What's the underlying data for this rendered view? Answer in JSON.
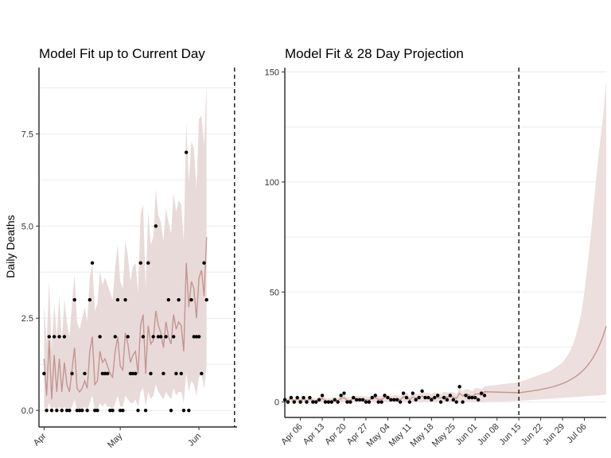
{
  "chart_data": [
    {
      "type": "line",
      "title": "Model Fit up to Current Day",
      "ylabel": "Daily Deaths",
      "xlabel": "",
      "ylim": [
        -0.45,
        9.3
      ],
      "xlim": [
        "2020-03-30",
        "2020-06-16"
      ],
      "current_day": "2020-06-15",
      "x_ticks": [
        {
          "date": "2020-04-01",
          "label": "Apr"
        },
        {
          "date": "2020-05-01",
          "label": "May"
        },
        {
          "date": "2020-06-01",
          "label": "Jun"
        }
      ],
      "y_ticks": [
        {
          "value": 0,
          "label": "0.0"
        },
        {
          "value": 2.5,
          "label": "2.5"
        },
        {
          "value": 5,
          "label": "5.0"
        },
        {
          "value": 7.5,
          "label": "7.5"
        }
      ],
      "grid": true,
      "start_date": "2020-04-01",
      "observed": [
        1,
        0,
        2,
        0,
        2,
        0,
        2,
        0,
        2,
        0,
        0,
        1,
        3,
        0,
        0,
        0,
        1,
        0,
        3,
        4,
        0,
        0,
        2,
        1,
        1,
        1,
        0,
        0,
        2,
        3,
        0,
        0,
        3,
        2,
        1,
        1,
        1,
        0,
        4,
        2,
        0,
        4,
        1,
        2,
        5,
        2,
        2,
        1,
        2,
        3,
        0,
        2,
        1,
        3,
        1,
        0,
        7,
        0,
        3,
        2,
        2,
        2,
        1,
        4,
        3
      ],
      "fit_median": [
        1.4,
        0.4,
        1.9,
        0.3,
        1.5,
        0.5,
        1.4,
        0.5,
        1.3,
        0.7,
        0.5,
        1.1,
        1.7,
        0.6,
        0.5,
        0.6,
        0.8,
        0.6,
        1.6,
        2.0,
        0.7,
        0.8,
        1.6,
        1.3,
        1.4,
        1.2,
        1.0,
        0.9,
        1.6,
        2.0,
        1.2,
        1.1,
        2.1,
        1.8,
        1.3,
        1.5,
        1.6,
        1.0,
        2.3,
        2.6,
        1.0,
        2.3,
        1.8,
        1.9,
        2.7,
        2.3,
        2.1,
        1.7,
        2.4,
        2.0,
        1.8,
        2.6,
        2.2,
        2.4,
        2.3,
        1.6,
        4.0,
        2.8,
        3.5,
        3.3,
        2.5,
        3.6,
        3.8,
        3.1,
        4.7
      ],
      "fit_upper": [
        2.9,
        1.8,
        3.5,
        1.7,
        2.9,
        2.0,
        3.1,
        1.9,
        3.0,
        2.4,
        2.0,
        2.9,
        3.7,
        2.4,
        2.2,
        2.5,
        2.8,
        2.4,
        3.6,
        4.0,
        2.7,
        2.9,
        3.8,
        3.4,
        3.6,
        3.4,
        3.2,
        3.0,
        3.9,
        4.5,
        3.5,
        3.3,
        4.6,
        4.2,
        3.5,
        3.9,
        4.0,
        3.2,
        5.3,
        5.6,
        3.3,
        5.4,
        4.5,
        4.7,
        6.0,
        5.3,
        5.1,
        4.6,
        5.5,
        5.1,
        4.8,
        5.9,
        5.4,
        5.7,
        5.6,
        4.6,
        7.8,
        6.2,
        7.3,
        7.1,
        6.0,
        7.9,
        8.0,
        7.2,
        8.9
      ],
      "fit_lower": [
        0.1,
        0.0,
        0.2,
        0.0,
        0.1,
        0.0,
        0.1,
        0.0,
        0.1,
        0.0,
        0.0,
        0.1,
        0.3,
        0.0,
        0.0,
        0.0,
        0.1,
        0.0,
        0.2,
        0.4,
        0.0,
        0.0,
        0.2,
        0.1,
        0.2,
        0.1,
        0.1,
        0.0,
        0.2,
        0.4,
        0.1,
        0.1,
        0.4,
        0.3,
        0.2,
        0.2,
        0.3,
        0.1,
        0.5,
        0.6,
        0.1,
        0.5,
        0.3,
        0.4,
        0.7,
        0.5,
        0.4,
        0.3,
        0.5,
        0.4,
        0.3,
        0.6,
        0.4,
        0.5,
        0.5,
        0.2,
        1.0,
        0.5,
        0.8,
        0.7,
        0.4,
        0.9,
        1.0,
        0.6,
        1.2
      ],
      "colors": {
        "ribbon": "#e9dada",
        "line": "#c2968f",
        "points": "#000000",
        "axis": "#000000",
        "grid": "#ebebeb"
      }
    },
    {
      "type": "line",
      "title": "Model Fit & 28 Day Projection",
      "ylabel": "",
      "xlabel": "",
      "ylim": [
        -7,
        152
      ],
      "xlim": [
        "2020-04-01",
        "2020-07-13"
      ],
      "current_day": "2020-06-15",
      "x_ticks": [
        {
          "date": "2020-04-06",
          "label": "Apr 06"
        },
        {
          "date": "2020-04-13",
          "label": "Apr 13"
        },
        {
          "date": "2020-04-20",
          "label": "Apr 20"
        },
        {
          "date": "2020-04-27",
          "label": "Apr 27"
        },
        {
          "date": "2020-05-04",
          "label": "May 04"
        },
        {
          "date": "2020-05-11",
          "label": "May 11"
        },
        {
          "date": "2020-05-18",
          "label": "May 18"
        },
        {
          "date": "2020-05-25",
          "label": "May 25"
        },
        {
          "date": "2020-06-01",
          "label": "Jun 01"
        },
        {
          "date": "2020-06-08",
          "label": "Jun 08"
        },
        {
          "date": "2020-06-15",
          "label": "Jun 15"
        },
        {
          "date": "2020-06-22",
          "label": "Jun 22"
        },
        {
          "date": "2020-06-29",
          "label": "Jun 29"
        },
        {
          "date": "2020-07-06",
          "label": "Jul 06"
        }
      ],
      "y_ticks": [
        {
          "value": 0,
          "label": "0"
        },
        {
          "value": 50,
          "label": "50"
        },
        {
          "value": 100,
          "label": "100"
        },
        {
          "value": 150,
          "label": "150"
        }
      ],
      "grid": true,
      "start_date": "2020-04-01",
      "observed": [
        1,
        0,
        2,
        0,
        2,
        0,
        2,
        0,
        2,
        0,
        0,
        1,
        3,
        0,
        0,
        0,
        1,
        0,
        3,
        4,
        0,
        0,
        2,
        1,
        1,
        1,
        0,
        0,
        2,
        3,
        0,
        0,
        3,
        2,
        1,
        1,
        1,
        0,
        4,
        2,
        0,
        4,
        1,
        2,
        5,
        2,
        2,
        1,
        2,
        3,
        0,
        2,
        1,
        3,
        1,
        0,
        7,
        0,
        3,
        2,
        2,
        2,
        1,
        4,
        3
      ],
      "projection_start": "2020-06-15",
      "projection_median": [
        4.2,
        4.4,
        4.6,
        4.8,
        5.0,
        5.2,
        5.4,
        5.7,
        6.0,
        6.3,
        6.6,
        7.0,
        7.4,
        7.9,
        8.4,
        9.0,
        9.7,
        10.5,
        11.4,
        12.4,
        13.6,
        15.0,
        16.6,
        18.5,
        20.7,
        23.3,
        26.4,
        30.0,
        34.5
      ],
      "projection_upper": [
        9,
        9.5,
        10,
        10.5,
        11,
        11.5,
        12,
        12.5,
        13,
        13.5,
        14,
        15,
        16,
        17,
        18,
        20,
        22,
        25,
        29,
        34,
        40,
        50,
        62,
        75,
        90,
        105,
        118,
        130,
        146
      ],
      "projection_lower": [
        0.5,
        0.6,
        0.7,
        0.8,
        0.9,
        1.0,
        1.1,
        1.2,
        1.3,
        1.4,
        1.5,
        1.6,
        1.7,
        1.8,
        1.9,
        2.0,
        2.1,
        2.2,
        2.3,
        2.4,
        2.5,
        2.6,
        2.7,
        2.8,
        2.9,
        3.0,
        3.1,
        3.2,
        3.3
      ],
      "colors": {
        "ribbon": "#eddfdd",
        "line": "#c2968f",
        "points": "#000000",
        "axis": "#000000",
        "grid": "#ebebeb"
      }
    }
  ]
}
